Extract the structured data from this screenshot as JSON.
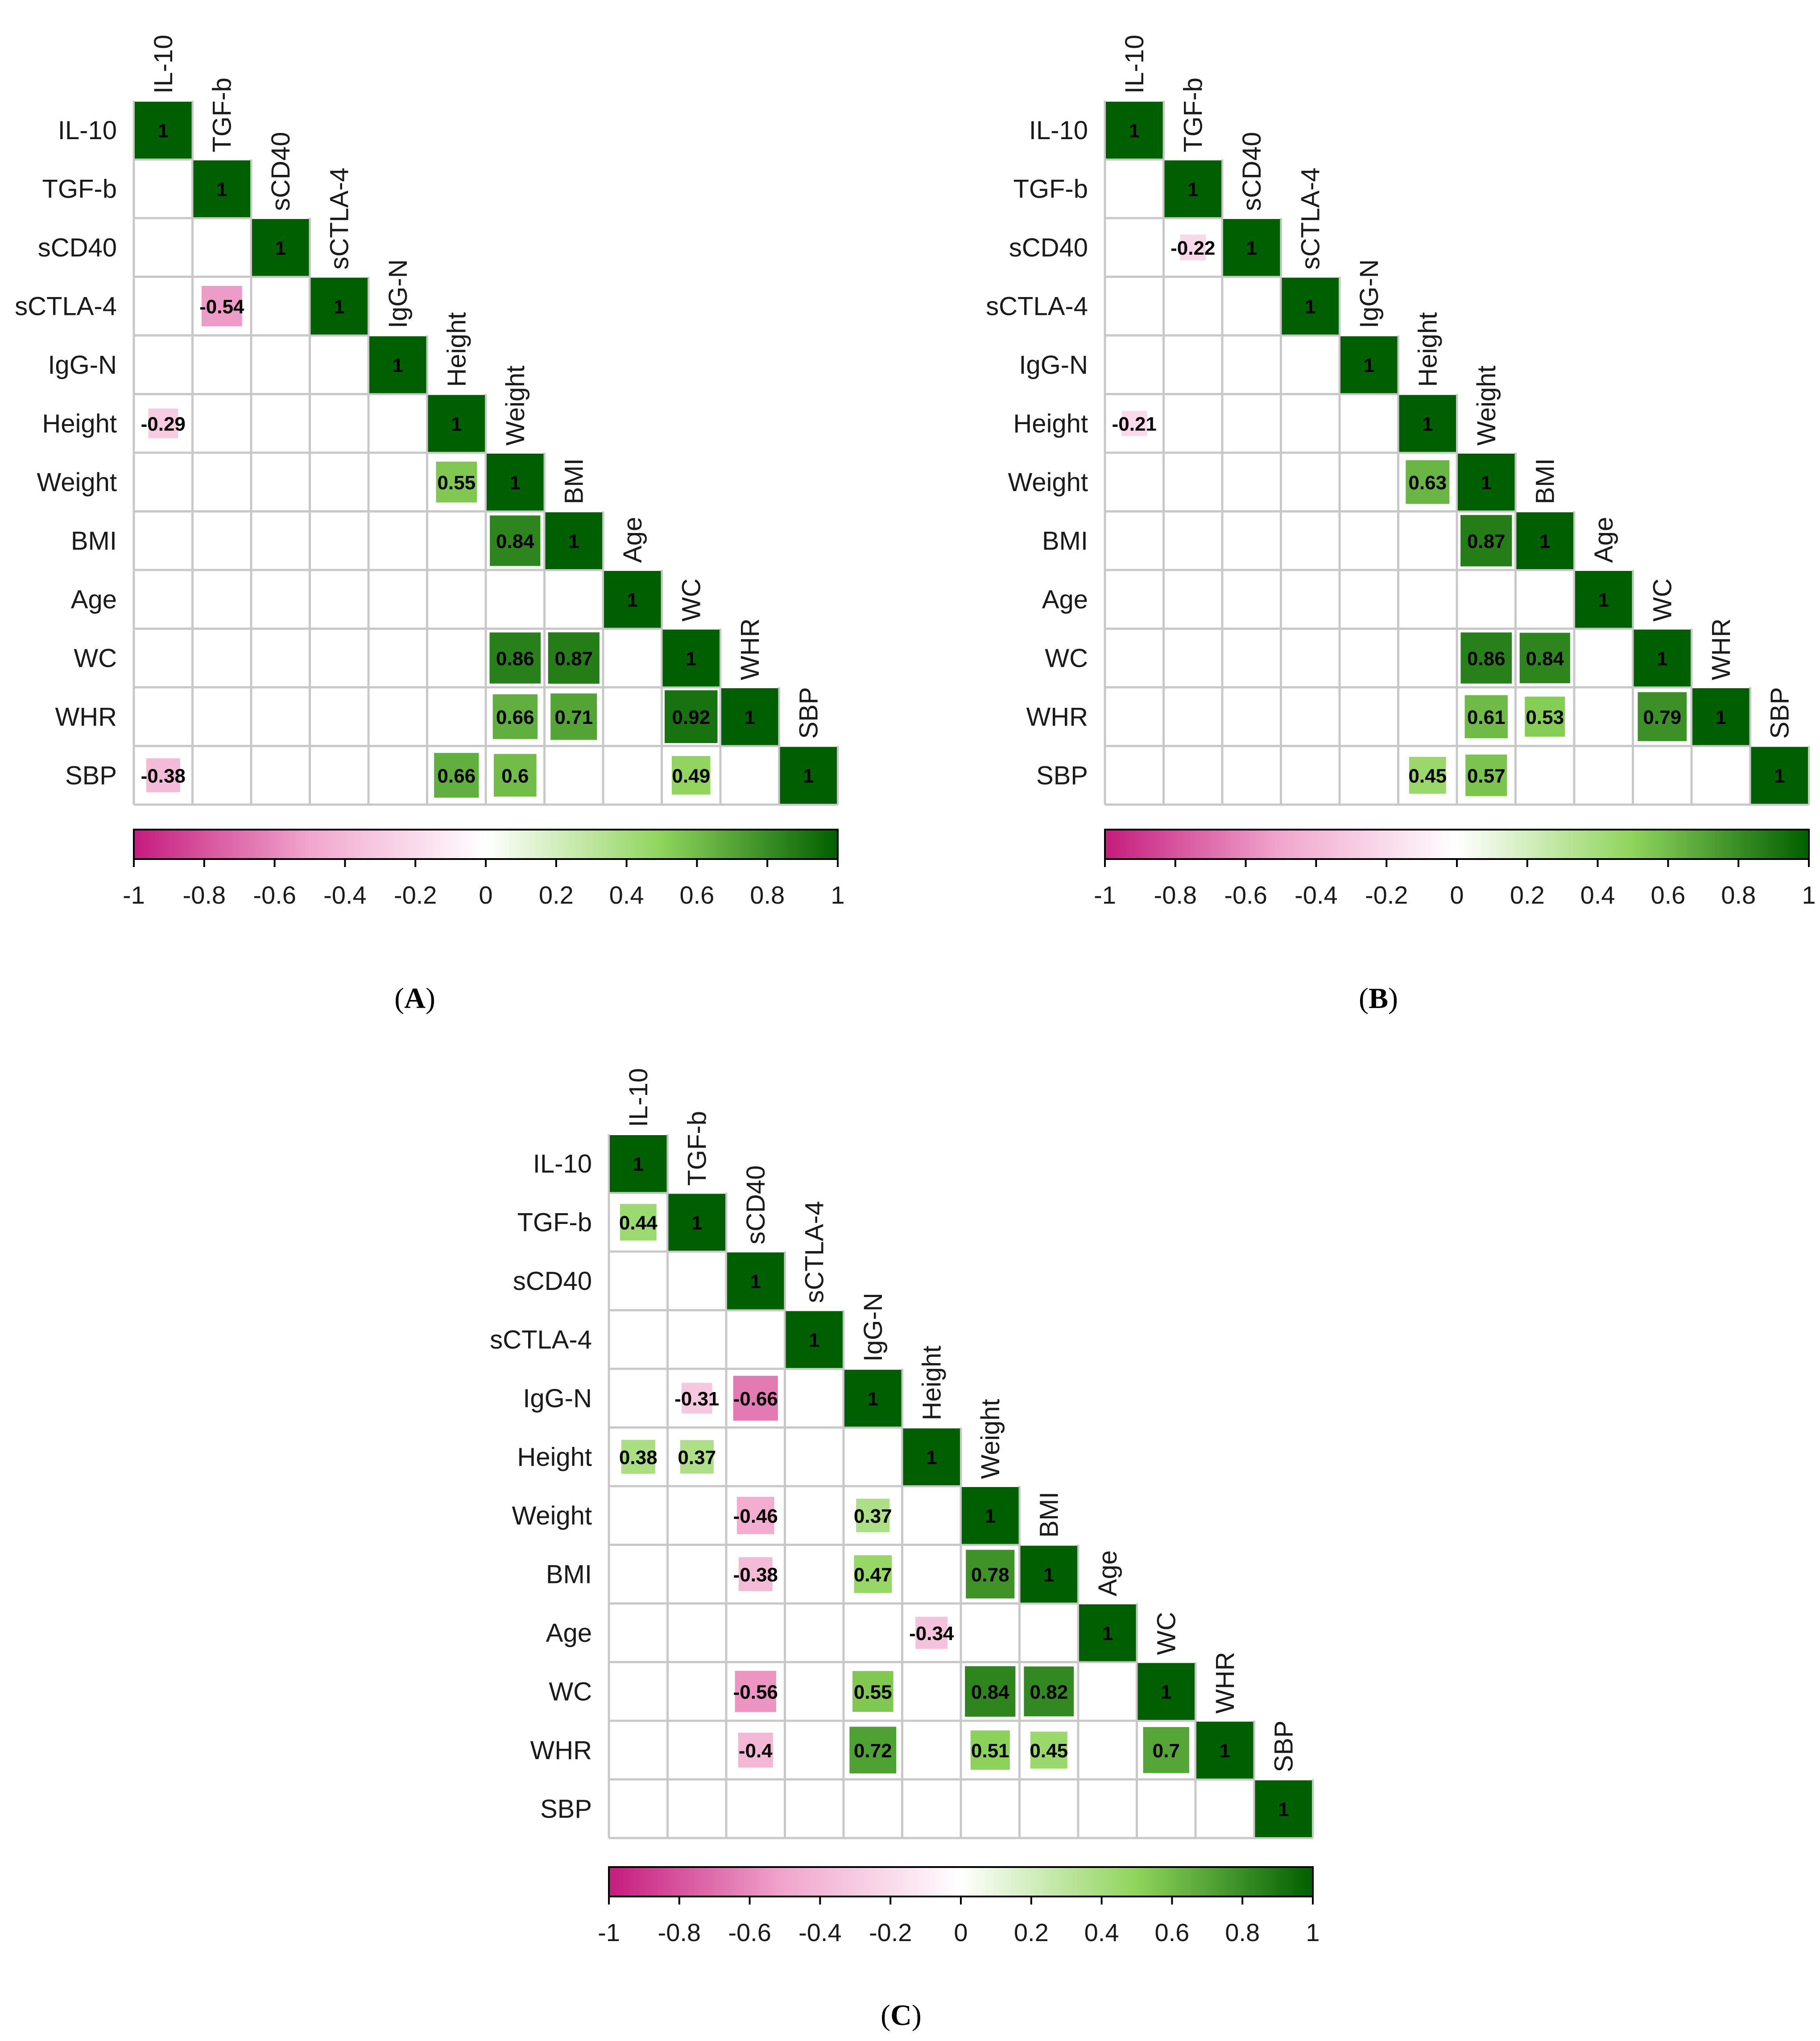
{
  "chart_data": [
    {
      "type": "heatmap",
      "panel_label": "A",
      "variables": [
        "IL-10",
        "TGF-b",
        "sCD40",
        "sCTLA-4",
        "IgG-N",
        "Height",
        "Weight",
        "BMI",
        "Age",
        "WC",
        "WHR",
        "SBP"
      ],
      "layout": "lower-triangle",
      "diagonal": 1,
      "cells": [
        {
          "row": "sCTLA-4",
          "col": "TGF-b",
          "value": -0.54
        },
        {
          "row": "Height",
          "col": "IL-10",
          "value": -0.29
        },
        {
          "row": "Weight",
          "col": "Height",
          "value": 0.55
        },
        {
          "row": "BMI",
          "col": "Weight",
          "value": 0.84
        },
        {
          "row": "WC",
          "col": "Weight",
          "value": 0.86
        },
        {
          "row": "WC",
          "col": "BMI",
          "value": 0.87
        },
        {
          "row": "WHR",
          "col": "Weight",
          "value": 0.66
        },
        {
          "row": "WHR",
          "col": "BMI",
          "value": 0.71
        },
        {
          "row": "WHR",
          "col": "WC",
          "value": 0.92
        },
        {
          "row": "SBP",
          "col": "IL-10",
          "value": -0.38
        },
        {
          "row": "SBP",
          "col": "Height",
          "value": 0.66
        },
        {
          "row": "SBP",
          "col": "Weight",
          "value": 0.6
        },
        {
          "row": "SBP",
          "col": "WC",
          "value": 0.49
        }
      ],
      "colorbar": {
        "range": [
          -1,
          1
        ],
        "ticks": [
          "-1",
          "-0.8",
          "-0.6",
          "-0.4",
          "-0.2",
          "0",
          "0.2",
          "0.4",
          "0.6",
          "0.8",
          "1"
        ]
      }
    },
    {
      "type": "heatmap",
      "panel_label": "B",
      "variables": [
        "IL-10",
        "TGF-b",
        "sCD40",
        "sCTLA-4",
        "IgG-N",
        "Height",
        "Weight",
        "BMI",
        "Age",
        "WC",
        "WHR",
        "SBP"
      ],
      "layout": "lower-triangle",
      "diagonal": 1,
      "cells": [
        {
          "row": "sCD40",
          "col": "TGF-b",
          "value": -0.22
        },
        {
          "row": "Height",
          "col": "IL-10",
          "value": -0.21
        },
        {
          "row": "Weight",
          "col": "Height",
          "value": 0.63
        },
        {
          "row": "BMI",
          "col": "Weight",
          "value": 0.87
        },
        {
          "row": "WC",
          "col": "Weight",
          "value": 0.86
        },
        {
          "row": "WC",
          "col": "BMI",
          "value": 0.84
        },
        {
          "row": "WHR",
          "col": "Weight",
          "value": 0.61
        },
        {
          "row": "WHR",
          "col": "BMI",
          "value": 0.53
        },
        {
          "row": "WHR",
          "col": "WC",
          "value": 0.79
        },
        {
          "row": "SBP",
          "col": "Height",
          "value": 0.45
        },
        {
          "row": "SBP",
          "col": "Weight",
          "value": 0.57
        }
      ],
      "colorbar": {
        "range": [
          -1,
          1
        ],
        "ticks": [
          "-1",
          "-0.8",
          "-0.6",
          "-0.4",
          "-0.2",
          "0",
          "0.2",
          "0.4",
          "0.6",
          "0.8",
          "1"
        ]
      }
    },
    {
      "type": "heatmap",
      "panel_label": "C",
      "variables": [
        "IL-10",
        "TGF-b",
        "sCD40",
        "sCTLA-4",
        "IgG-N",
        "Height",
        "Weight",
        "BMI",
        "Age",
        "WC",
        "WHR",
        "SBP"
      ],
      "layout": "lower-triangle",
      "diagonal": 1,
      "cells": [
        {
          "row": "TGF-b",
          "col": "IL-10",
          "value": 0.44
        },
        {
          "row": "IgG-N",
          "col": "TGF-b",
          "value": -0.31
        },
        {
          "row": "IgG-N",
          "col": "sCD40",
          "value": -0.66
        },
        {
          "row": "Height",
          "col": "IL-10",
          "value": 0.38
        },
        {
          "row": "Height",
          "col": "TGF-b",
          "value": 0.37
        },
        {
          "row": "Weight",
          "col": "sCD40",
          "value": -0.46
        },
        {
          "row": "Weight",
          "col": "IgG-N",
          "value": 0.37
        },
        {
          "row": "BMI",
          "col": "sCD40",
          "value": -0.38
        },
        {
          "row": "BMI",
          "col": "IgG-N",
          "value": 0.47
        },
        {
          "row": "BMI",
          "col": "Weight",
          "value": 0.78
        },
        {
          "row": "Age",
          "col": "Height",
          "value": -0.34
        },
        {
          "row": "WC",
          "col": "sCD40",
          "value": -0.56
        },
        {
          "row": "WC",
          "col": "IgG-N",
          "value": 0.55
        },
        {
          "row": "WC",
          "col": "Weight",
          "value": 0.84
        },
        {
          "row": "WC",
          "col": "BMI",
          "value": 0.82
        },
        {
          "row": "WHR",
          "col": "sCD40",
          "value": -0.4
        },
        {
          "row": "WHR",
          "col": "IgG-N",
          "value": 0.72
        },
        {
          "row": "WHR",
          "col": "Weight",
          "value": 0.51
        },
        {
          "row": "WHR",
          "col": "BMI",
          "value": 0.45
        },
        {
          "row": "WHR",
          "col": "WC",
          "value": 0.7
        }
      ],
      "colorbar": {
        "range": [
          -1,
          1
        ],
        "ticks": [
          "-1",
          "-0.8",
          "-0.6",
          "-0.4",
          "-0.2",
          "0",
          "0.2",
          "0.4",
          "0.6",
          "0.8",
          "1"
        ]
      }
    }
  ],
  "colors": {
    "neg_end": "#c51b7d",
    "neg_mid": "#f1a6cd",
    "neutral": "#ffffff",
    "pos_mid": "#8fd45c",
    "pos_end": "#005f00"
  }
}
